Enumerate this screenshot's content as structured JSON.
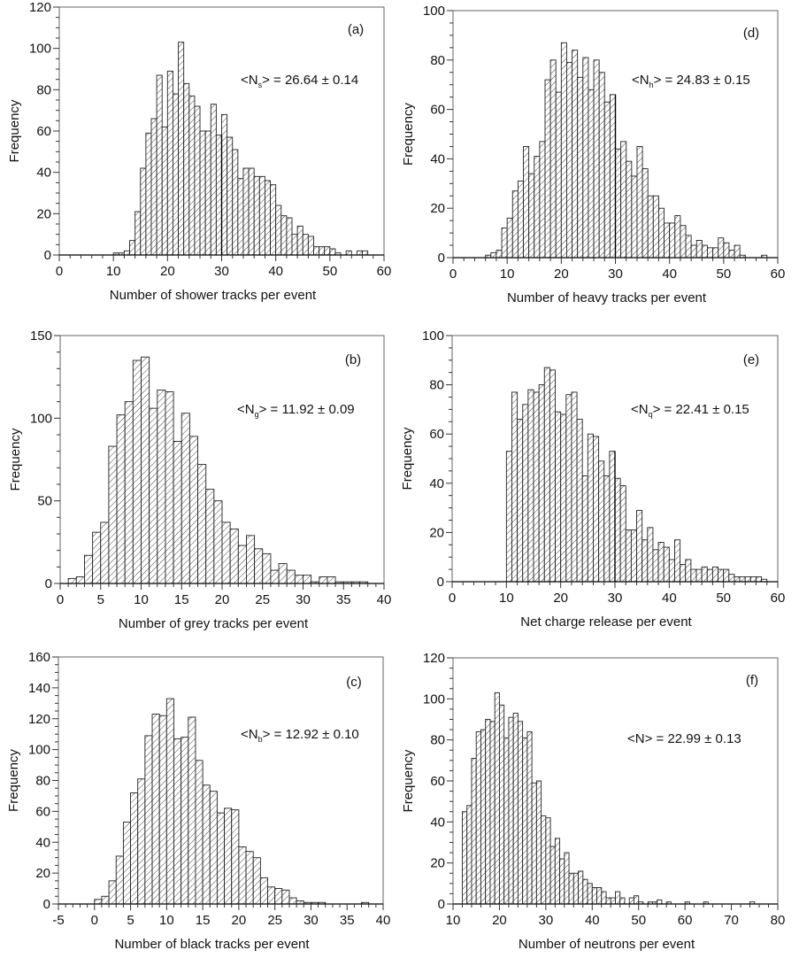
{
  "chart_data": [
    {
      "id": "a",
      "type": "bar",
      "panel_label": "(a)",
      "title": "",
      "xlabel": "Number of shower tracks per event",
      "ylabel": "Frequency",
      "xlim": [
        0,
        60
      ],
      "ylim": [
        0,
        120
      ],
      "xticks": [
        0,
        10,
        20,
        30,
        40,
        50,
        60
      ],
      "yticks": [
        0,
        20,
        40,
        60,
        80,
        100,
        120
      ],
      "x_minor_step": 2,
      "y_minor_step": 5,
      "bin_start": 10,
      "bin_width": 1,
      "values": [
        1,
        1,
        2,
        7,
        21,
        42,
        59,
        66,
        87,
        62,
        89,
        78,
        103,
        83,
        77,
        72,
        60,
        60,
        73,
        58,
        68,
        57,
        51,
        37,
        42,
        42,
        38,
        38,
        36,
        34,
        24,
        19,
        18,
        10,
        14,
        10,
        9,
        4,
        4,
        4,
        3,
        1,
        0,
        2,
        0,
        2,
        2
      ],
      "mean_annotation": {
        "prefix": "<N",
        "sub": "s",
        "suffix": "> = 26.64 ± 0.14"
      },
      "reference_line_x": 30,
      "grid": false,
      "legend": "none"
    },
    {
      "id": "d",
      "type": "bar",
      "panel_label": "(d)",
      "title": "",
      "xlabel": "Number of heavy tracks per event",
      "ylabel": "Frequency",
      "xlim": [
        0,
        60
      ],
      "ylim": [
        0,
        100
      ],
      "xticks": [
        0,
        10,
        20,
        30,
        40,
        50,
        60
      ],
      "yticks": [
        0,
        20,
        40,
        60,
        80,
        100
      ],
      "x_minor_step": 2,
      "y_minor_step": 5,
      "bin_start": 6,
      "bin_width": 1,
      "values": [
        1,
        2,
        3,
        12,
        16,
        27,
        31,
        45,
        34,
        41,
        47,
        72,
        80,
        67,
        87,
        79,
        84,
        73,
        81,
        68,
        80,
        75,
        63,
        66,
        44,
        47,
        39,
        33,
        45,
        36,
        25,
        25,
        20,
        14,
        14,
        17,
        13,
        9,
        5,
        7,
        5,
        4,
        4,
        8,
        6,
        3,
        5,
        1,
        0,
        0,
        0,
        1
      ],
      "mean_annotation": {
        "prefix": "<N",
        "sub": "h",
        "suffix": "> = 24.83 ± 0.15"
      },
      "reference_line_x": 30,
      "grid": false,
      "legend": "none"
    },
    {
      "id": "b",
      "type": "bar",
      "panel_label": "(b)",
      "title": "",
      "xlabel": "Number of grey tracks per event",
      "ylabel": "Frequency",
      "xlim": [
        0,
        40
      ],
      "ylim": [
        0,
        150
      ],
      "xticks": [
        0,
        5,
        10,
        15,
        20,
        25,
        30,
        35,
        40
      ],
      "yticks": [
        0,
        50,
        100,
        150
      ],
      "x_minor_step": 1,
      "y_minor_step": 10,
      "bin_start": 1,
      "bin_width": 1,
      "values": [
        3,
        4,
        17,
        31,
        37,
        83,
        102,
        110,
        135,
        137,
        106,
        117,
        116,
        86,
        103,
        89,
        72,
        57,
        50,
        37,
        33,
        23,
        29,
        21,
        18,
        8,
        12,
        8,
        5,
        5,
        1,
        4,
        4,
        1,
        1,
        1,
        1
      ],
      "mean_annotation": {
        "prefix": "<N",
        "sub": "g",
        "suffix": "> = 11.92 ± 0.09"
      },
      "reference_line_x": null,
      "grid": false,
      "legend": "none"
    },
    {
      "id": "e",
      "type": "bar",
      "panel_label": "(e)",
      "title": "",
      "xlabel": "Net charge release per event",
      "ylabel": "Frequency",
      "xlim": [
        0,
        60
      ],
      "ylim": [
        0,
        100
      ],
      "xticks": [
        0,
        10,
        20,
        30,
        40,
        50,
        60
      ],
      "yticks": [
        0,
        20,
        40,
        60,
        80,
        100
      ],
      "x_minor_step": 2,
      "y_minor_step": 5,
      "bin_start": 10,
      "bin_width": 1,
      "values": [
        53,
        77,
        66,
        72,
        78,
        77,
        80,
        87,
        86,
        69,
        68,
        76,
        77,
        66,
        43,
        60,
        59,
        49,
        43,
        53,
        42,
        39,
        21,
        21,
        29,
        17,
        22,
        13,
        16,
        14,
        9,
        17,
        7,
        9,
        5,
        5,
        6,
        5,
        6,
        5,
        5,
        3,
        2,
        2,
        2,
        2,
        2,
        1
      ],
      "mean_annotation": {
        "prefix": "<N",
        "sub": "q",
        "suffix": "> = 22.41 ± 0.15"
      },
      "reference_line_x": 30,
      "grid": false,
      "legend": "none"
    },
    {
      "id": "c",
      "type": "bar",
      "panel_label": "(c)",
      "title": "",
      "xlabel": "Number of black tracks per event",
      "ylabel": "Frequency",
      "xlim": [
        -5,
        40
      ],
      "ylim": [
        0,
        160
      ],
      "xticks": [
        -5,
        0,
        5,
        10,
        15,
        20,
        25,
        30,
        35,
        40
      ],
      "yticks": [
        0,
        20,
        40,
        60,
        80,
        100,
        120,
        140,
        160
      ],
      "x_minor_step": 1,
      "y_minor_step": 5,
      "bin_start": 0,
      "bin_width": 1,
      "values": [
        3,
        5,
        15,
        31,
        53,
        72,
        81,
        109,
        123,
        122,
        133,
        107,
        108,
        121,
        93,
        77,
        73,
        59,
        62,
        61,
        37,
        34,
        30,
        17,
        11,
        10,
        9,
        4,
        2,
        1,
        1,
        1,
        0,
        0,
        0,
        0,
        0,
        1
      ],
      "mean_annotation": {
        "prefix": "<N",
        "sub": "b",
        "suffix": "> = 12.92 ± 0.10"
      },
      "reference_line_x": null,
      "grid": false,
      "legend": "none"
    },
    {
      "id": "f",
      "type": "bar",
      "panel_label": "(f)",
      "title": "",
      "xlabel": "Number of neutrons per event",
      "ylabel": "Frequency",
      "xlim": [
        10,
        80
      ],
      "ylim": [
        0,
        120
      ],
      "xticks": [
        10,
        20,
        30,
        40,
        50,
        60,
        70,
        80
      ],
      "yticks": [
        0,
        20,
        40,
        60,
        80,
        100,
        120
      ],
      "x_minor_step": 2,
      "y_minor_step": 5,
      "bin_start": 12,
      "bin_width": 1,
      "values": [
        45,
        48,
        71,
        84,
        85,
        90,
        89,
        103,
        97,
        81,
        91,
        93,
        89,
        81,
        84,
        59,
        60,
        43,
        42,
        28,
        32,
        22,
        25,
        15,
        15,
        16,
        12,
        10,
        8,
        8,
        6,
        3,
        3,
        6,
        3,
        0,
        3,
        4,
        1,
        0,
        1,
        1,
        2,
        0,
        1,
        0,
        0,
        0,
        1,
        0,
        0,
        0,
        1,
        0,
        0,
        0,
        0,
        0,
        0,
        0,
        0,
        0,
        1
      ],
      "mean_annotation": {
        "prefix": "<N",
        "sub": "",
        "suffix": "> = 22.99 ± 0.13"
      },
      "reference_line_x": null,
      "grid": false,
      "legend": "none"
    }
  ]
}
